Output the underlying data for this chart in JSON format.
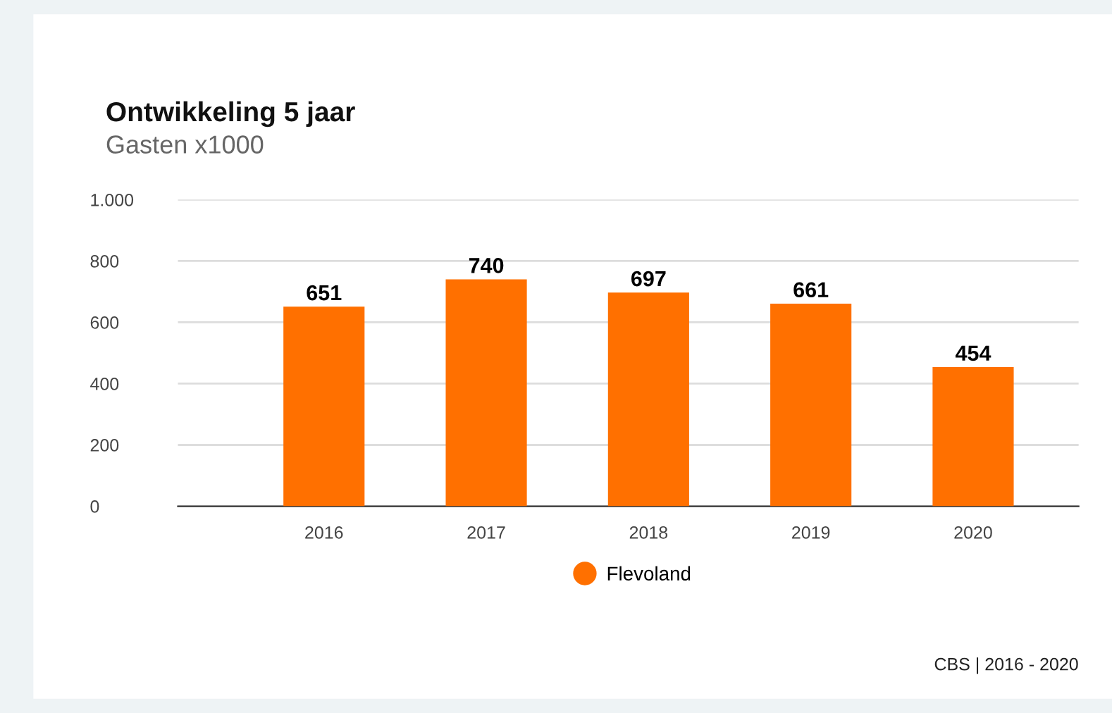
{
  "chart_data": {
    "type": "bar",
    "title": "Ontwikkeling 5 jaar",
    "subtitle": "Gasten x1000",
    "categories": [
      "2016",
      "2017",
      "2018",
      "2019",
      "2020"
    ],
    "series": [
      {
        "name": "Flevoland",
        "color": "#ff7000",
        "values": [
          651,
          740,
          697,
          661,
          454
        ]
      }
    ],
    "ylim": [
      0,
      1000
    ],
    "yticks": [
      0,
      200,
      400,
      600,
      800,
      {
        "value": 1000,
        "label": "1.000"
      }
    ],
    "grid": "y",
    "legend": "bottom",
    "marker": "circle",
    "data_labels": true,
    "annotations": [
      "CBS | 2016 - 2020"
    ]
  }
}
